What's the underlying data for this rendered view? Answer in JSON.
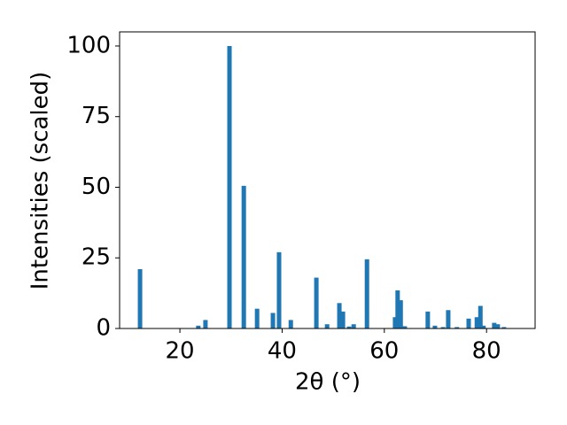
{
  "chart_data": {
    "type": "bar",
    "x_label": "2θ (°)",
    "y_label": "Intensities (scaled)",
    "x": [
      12.2,
      23.6,
      25.0,
      29.7,
      32.5,
      35.1,
      38.2,
      39.4,
      41.7,
      46.7,
      48.8,
      51.2,
      51.9,
      53.1,
      54.0,
      56.6,
      62.1,
      62.6,
      63.2,
      64.0,
      68.5,
      69.9,
      71.5,
      72.5,
      74.2,
      76.5,
      78.1,
      78.8,
      79.4,
      81.5,
      82.2,
      83.4
    ],
    "values": [
      21,
      1,
      3,
      100,
      50.5,
      7,
      5.5,
      27,
      3,
      18,
      1.5,
      9,
      6,
      0.7,
      1.5,
      24.5,
      4,
      13.5,
      10,
      0.8,
      6,
      1,
      0.5,
      6.5,
      0.5,
      3.5,
      4,
      8,
      1,
      2,
      1.5,
      0.5
    ],
    "color": "#1f77b4",
    "xlim": [
      8.2,
      89.5
    ],
    "ylim": [
      0,
      105
    ],
    "xticks": [
      20,
      40,
      60,
      80
    ],
    "yticks": [
      0,
      25,
      50,
      75,
      100
    ],
    "grid": false
  }
}
